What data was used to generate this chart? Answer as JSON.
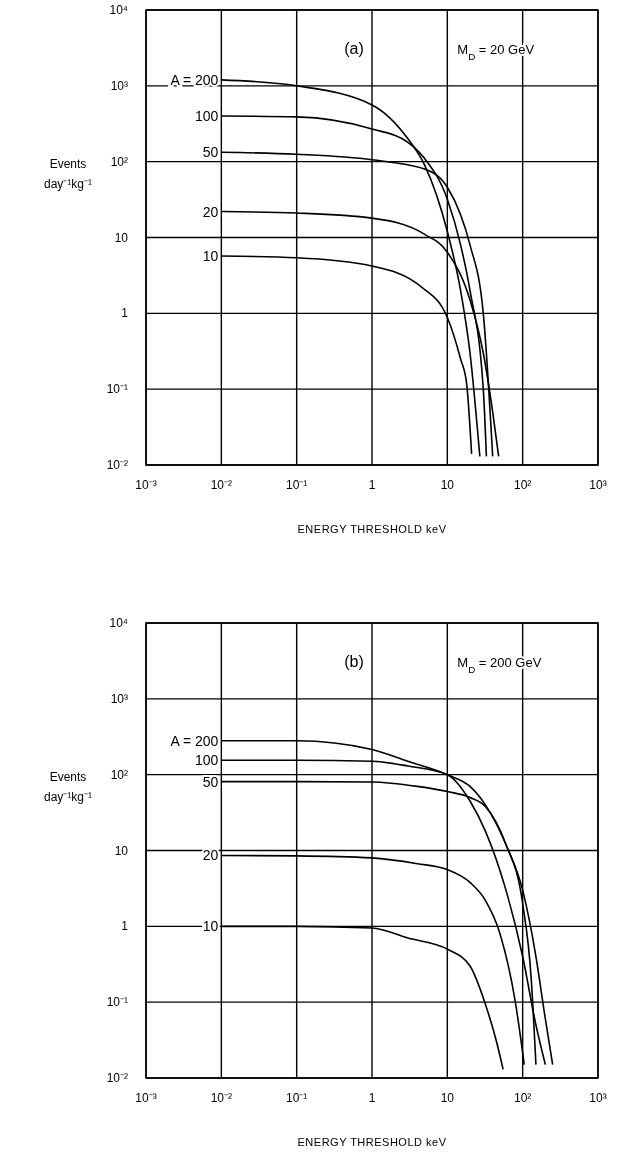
{
  "chart_data": [
    {
      "type": "line",
      "xlabel": "ENERGY THRESHOLD keV",
      "ylabel": "Events day⁻¹kg⁻¹",
      "annotations": [
        "(a)",
        "M$_{D}$ = 20 GeV"
      ],
      "log": "xy",
      "grid": true,
      "legend": false,
      "marker": "none",
      "line_style": "solid",
      "xlim": [
        0.001,
        1000
      ],
      "ylim": [
        0.01,
        10000
      ],
      "xticks": [
        {
          "value": 0.001,
          "label": "10⁻³"
        },
        {
          "value": 0.01,
          "label": "10⁻²"
        },
        {
          "value": 0.1,
          "label": "10⁻¹"
        },
        {
          "value": 1,
          "label": "1"
        },
        {
          "value": 10,
          "label": "10"
        },
        {
          "value": 100,
          "label": "10²"
        },
        {
          "value": 1000,
          "label": "10³"
        }
      ],
      "yticks": [
        {
          "value": 0.01,
          "label": "10⁻²"
        },
        {
          "value": 0.1,
          "label": "10⁻¹"
        },
        {
          "value": 1,
          "label": "1"
        },
        {
          "value": 10,
          "label": "10"
        },
        {
          "value": 100,
          "label": "10²"
        },
        {
          "value": 1000,
          "label": "10³"
        },
        {
          "value": 10000,
          "label": "10⁴"
        }
      ],
      "series": [
        {
          "name": "A = 200",
          "color": "#000000",
          "x": [
            0.01,
            0.1,
            1,
            3,
            5,
            10,
            15,
            20,
            27
          ],
          "values": [
            1200,
            1000,
            560,
            200,
            90,
            12,
            2,
            0.3,
            0.013
          ]
        },
        {
          "name": "100",
          "color": "#000000",
          "x": [
            0.01,
            0.1,
            1,
            3,
            5,
            10,
            15,
            20,
            30,
            33
          ],
          "values": [
            400,
            390,
            270,
            180,
            110,
            32,
            8,
            2,
            0.1,
            0.013
          ]
        },
        {
          "name": "50",
          "color": "#000000",
          "x": [
            0.01,
            0.1,
            1,
            5,
            10,
            15,
            20,
            30,
            40
          ],
          "values": [
            133,
            125,
            106,
            80,
            46,
            20,
            8,
            1,
            0.013
          ]
        },
        {
          "name": "20",
          "color": "#000000",
          "x": [
            0.01,
            0.1,
            1,
            5,
            10,
            20,
            30,
            40,
            48
          ],
          "values": [
            22,
            21,
            18,
            11,
            6.4,
            1.5,
            0.3,
            0.05,
            0.013
          ]
        },
        {
          "name": "10",
          "color": "#000000",
          "x": [
            0.01,
            0.1,
            1,
            4.6,
            10,
            15,
            18,
            21
          ],
          "values": [
            5.7,
            5.4,
            4.2,
            2.2,
            0.88,
            0.25,
            0.12,
            0.014
          ]
        }
      ]
    },
    {
      "type": "line",
      "xlabel": "ENERGY THRESHOLD keV",
      "ylabel": "Events day⁻¹kg⁻¹",
      "annotations": [
        "(b)",
        "M$_{D}$ = 200 GeV"
      ],
      "log": "xy",
      "grid": true,
      "legend": false,
      "marker": "none",
      "line_style": "solid",
      "xlim": [
        0.001,
        1000
      ],
      "ylim": [
        0.01,
        10000
      ],
      "xticks": [
        {
          "value": 0.001,
          "label": "10⁻³"
        },
        {
          "value": 0.01,
          "label": "10⁻²"
        },
        {
          "value": 0.1,
          "label": "10⁻¹"
        },
        {
          "value": 1,
          "label": "1"
        },
        {
          "value": 10,
          "label": "10"
        },
        {
          "value": 100,
          "label": "10²"
        },
        {
          "value": 1000,
          "label": "10³"
        }
      ],
      "yticks": [
        {
          "value": 0.01,
          "label": "10⁻²"
        },
        {
          "value": 0.1,
          "label": "10⁻¹"
        },
        {
          "value": 1,
          "label": "1"
        },
        {
          "value": 10,
          "label": "10"
        },
        {
          "value": 100,
          "label": "10²"
        },
        {
          "value": 1000,
          "label": "10³"
        },
        {
          "value": 10000,
          "label": "10⁴"
        }
      ],
      "series": [
        {
          "name": "A = 200",
          "color": "#000000",
          "x": [
            0.01,
            0.1,
            1,
            3,
            10,
            20,
            32,
            60,
            100,
            150,
            200,
            250
          ],
          "values": [
            280,
            280,
            215,
            150,
            100,
            70,
            40,
            12,
            3,
            0.4,
            0.06,
            0.015
          ]
        },
        {
          "name": "100",
          "color": "#000000",
          "x": [
            0.01,
            0.1,
            1,
            3,
            10,
            20,
            32,
            60,
            100,
            150,
            200
          ],
          "values": [
            155,
            155,
            150,
            130,
            100,
            45,
            18,
            3,
            0.4,
            0.05,
            0.015
          ]
        },
        {
          "name": "50",
          "color": "#000000",
          "x": [
            0.01,
            0.1,
            1,
            4,
            10,
            20,
            32,
            60,
            100,
            130,
            150
          ],
          "values": [
            81,
            81,
            80,
            70,
            60,
            50,
            38,
            12,
            2,
            0.2,
            0.015
          ]
        },
        {
          "name": "20",
          "color": "#000000",
          "x": [
            0.01,
            0.1,
            1,
            4,
            10,
            20,
            32,
            50,
            80,
            105
          ],
          "values": [
            8.6,
            8.5,
            8,
            6.7,
            5.6,
            3.8,
            2.2,
            0.8,
            0.1,
            0.015
          ]
        },
        {
          "name": "10",
          "color": "#000000",
          "x": [
            0.01,
            0.1,
            1,
            3,
            10,
            20,
            32,
            45,
            55
          ],
          "values": [
            1,
            1,
            0.95,
            0.7,
            0.5,
            0.3,
            0.094,
            0.03,
            0.013
          ]
        }
      ]
    }
  ]
}
